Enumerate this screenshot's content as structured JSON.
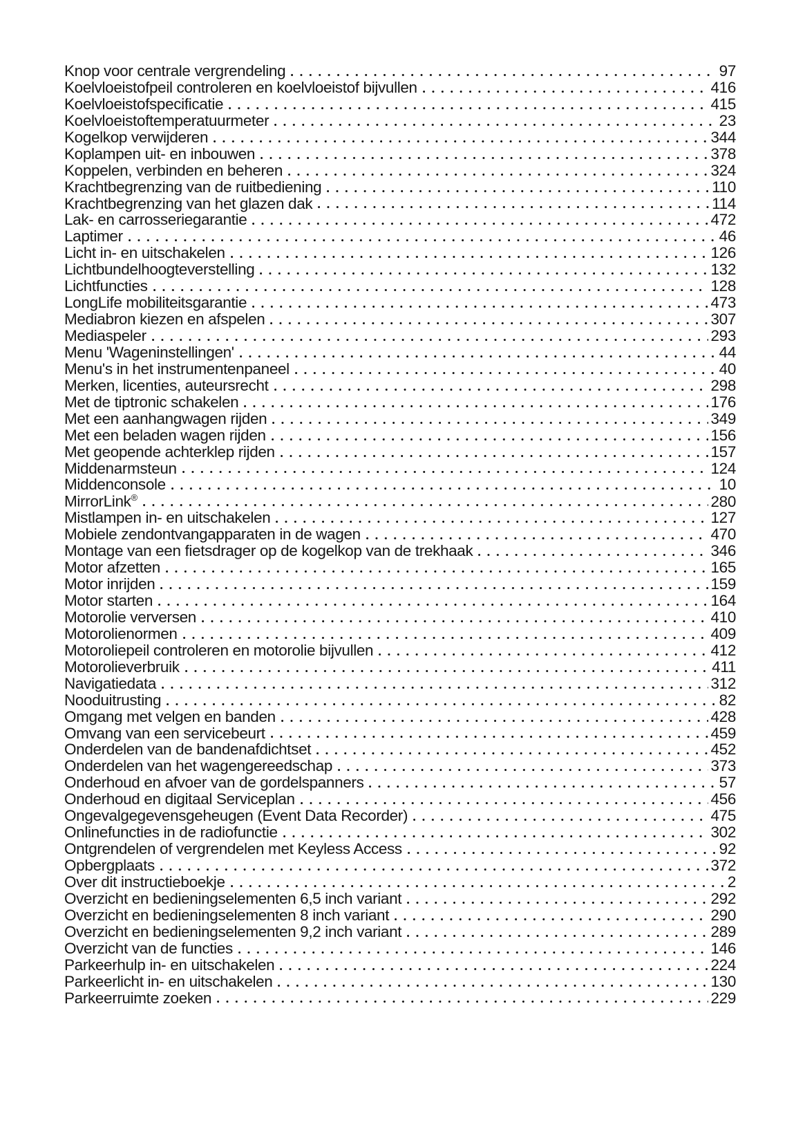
{
  "page": {
    "background_color": "#ffffff",
    "text_color": "#161616",
    "kind": "manual-index-page",
    "language": "nl"
  },
  "index": {
    "entries": [
      {
        "label": "Knop voor centrale vergrendeling",
        "page": "97"
      },
      {
        "label": "Koelvloeistofpeil controleren en koelvloeistof bijvullen",
        "page": "416"
      },
      {
        "label": "Koelvloeistofspecificatie",
        "page": "415"
      },
      {
        "label": "Koelvloeistoftemperatuurmeter",
        "page": "23"
      },
      {
        "label": "Kogelkop verwijderen",
        "page": "344"
      },
      {
        "label": "Koplampen uit- en inbouwen",
        "page": "378"
      },
      {
        "label": "Koppelen, verbinden en beheren",
        "page": "324"
      },
      {
        "label": "Krachtbegrenzing van de ruitbediening",
        "page": "110"
      },
      {
        "label": "Krachtbegrenzing van het glazen dak",
        "page": "114"
      },
      {
        "label": "Lak- en carrosseriegarantie",
        "page": "472"
      },
      {
        "label": "Laptimer",
        "page": "46"
      },
      {
        "label": "Licht in- en uitschakelen",
        "page": "126"
      },
      {
        "label": "Lichtbundelhoogteverstelling",
        "page": "132"
      },
      {
        "label": "Lichtfuncties",
        "page": "128"
      },
      {
        "label": "LongLife mobiliteitsgarantie",
        "page": "473"
      },
      {
        "label": "Mediabron kiezen en afspelen",
        "page": "307"
      },
      {
        "label": "Mediaspeler",
        "page": "293"
      },
      {
        "label": "Menu 'Wageninstellingen'",
        "page": "44"
      },
      {
        "label": "Menu's in het instrumentenpaneel",
        "page": "40"
      },
      {
        "label": "Merken, licenties, auteursrecht",
        "page": "298"
      },
      {
        "label": "Met de tiptronic schakelen",
        "page": "176"
      },
      {
        "label": "Met een aanhangwagen rijden",
        "page": "349"
      },
      {
        "label": "Met een beladen wagen rijden",
        "page": "156"
      },
      {
        "label": "Met geopende achterklep rijden",
        "page": "157"
      },
      {
        "label": "Middenarmsteun",
        "page": "124"
      },
      {
        "label": "Middenconsole",
        "page": "10"
      },
      {
        "label": "MirrorLink®",
        "page": "280"
      },
      {
        "label": "Mistlampen in- en uitschakelen",
        "page": "127"
      },
      {
        "label": "Mobiele zendontvangapparaten in de wagen",
        "page": "470"
      },
      {
        "label": "Montage van een fietsdrager op de kogelkop van de trekhaak",
        "page": "346"
      },
      {
        "label": "Motor afzetten",
        "page": "165"
      },
      {
        "label": "Motor inrijden",
        "page": "159"
      },
      {
        "label": "Motor starten",
        "page": "164"
      },
      {
        "label": "Motorolie verversen",
        "page": "410"
      },
      {
        "label": "Motorolienormen",
        "page": "409"
      },
      {
        "label": "Motoroliepeil controleren en motorolie bijvullen",
        "page": "412"
      },
      {
        "label": "Motorolieverbruik",
        "page": "411"
      },
      {
        "label": "Navigatiedata",
        "page": "312"
      },
      {
        "label": "Nooduitrusting",
        "page": "82"
      },
      {
        "label": "Omgang met velgen en banden",
        "page": "428"
      },
      {
        "label": "Omvang van een servicebeurt",
        "page": "459"
      },
      {
        "label": "Onderdelen van de bandenafdichtset",
        "page": "452"
      },
      {
        "label": "Onderdelen van het wagengereedschap",
        "page": "373"
      },
      {
        "label": "Onderhoud en afvoer van de gordelspanners",
        "page": "57"
      },
      {
        "label": "Onderhoud en digitaal Serviceplan",
        "page": "456"
      },
      {
        "label": "Ongevalgegevensgeheugen (Event Data Recorder)",
        "page": "475"
      },
      {
        "label": "Onlinefuncties in de radiofunctie",
        "page": "302"
      },
      {
        "label": "Ontgrendelen of vergrendelen met Keyless Access",
        "page": "92"
      },
      {
        "label": "Opbergplaats",
        "page": "372"
      },
      {
        "label": "Over dit instructieboekje",
        "page": "2"
      },
      {
        "label": "Overzicht en bedieningselementen 6,5 inch variant",
        "page": "292"
      },
      {
        "label": "Overzicht en bedieningselementen 8 inch variant",
        "page": "290"
      },
      {
        "label": "Overzicht en bedieningselementen 9,2 inch variant",
        "page": "289"
      },
      {
        "label": "Overzicht van de functies",
        "page": "146"
      },
      {
        "label": "Parkeerhulp in- en uitschakelen",
        "page": "224"
      },
      {
        "label": "Parkeerlicht in- en uitschakelen",
        "page": "130"
      },
      {
        "label": "Parkeerruimte zoeken",
        "page": "229"
      }
    ]
  }
}
